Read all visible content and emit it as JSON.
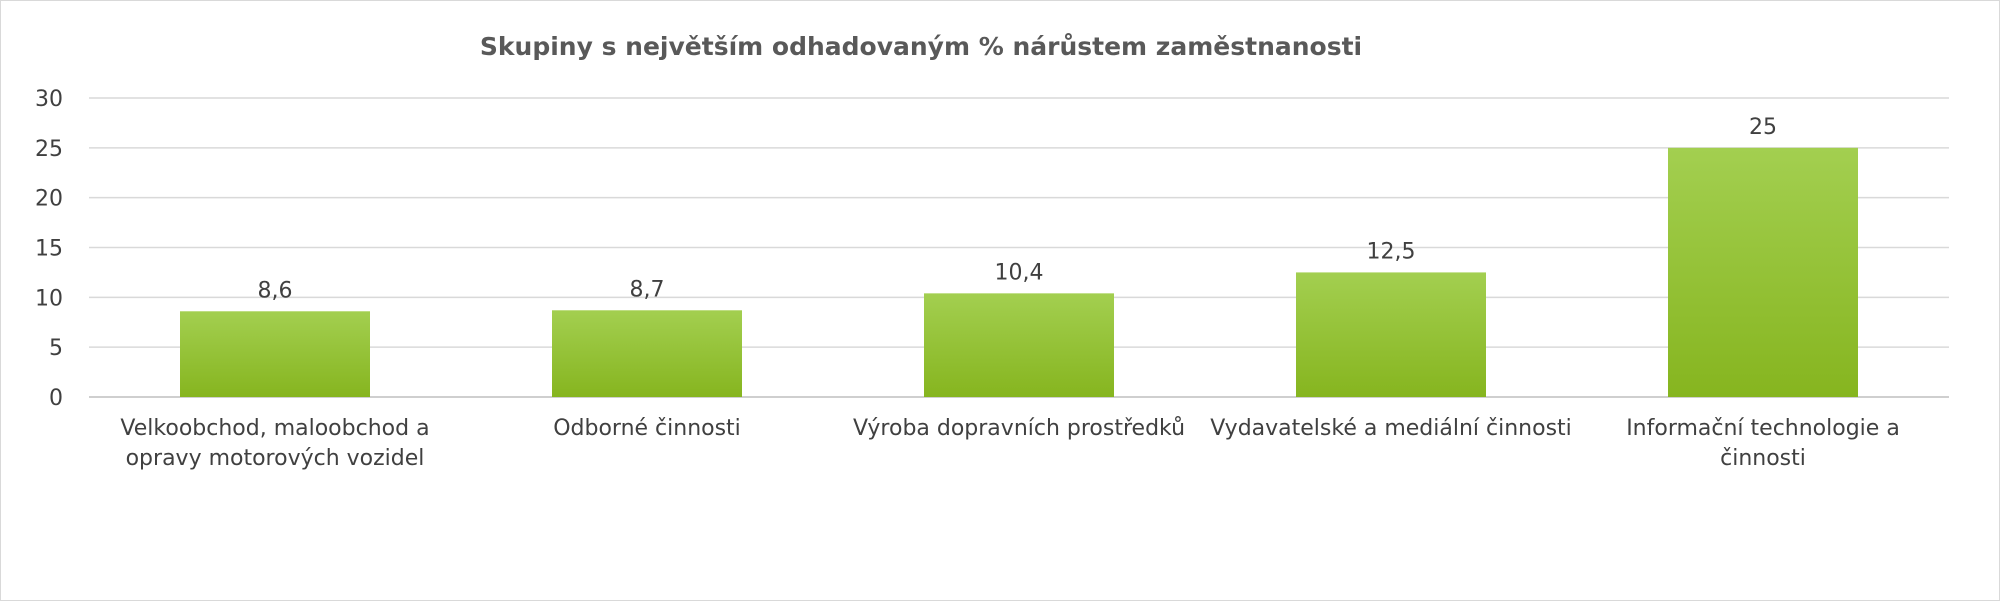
{
  "chart_data": {
    "type": "bar",
    "title": "Skupiny s největším odhadovaným % nárůstem zaměstnanosti",
    "categories": [
      [
        "Velkoobchod, maloobchod a",
        "opravy motorových vozidel"
      ],
      [
        "Odborné činnosti"
      ],
      [
        "Výroba dopravních prostředků"
      ],
      [
        "Vydavatelské a mediální činnosti"
      ],
      [
        "Informační technologie a",
        "činnosti"
      ]
    ],
    "values": [
      8.6,
      8.7,
      10.4,
      12.5,
      25
    ],
    "data_labels": [
      "8,6",
      "8,7",
      "10,4",
      "12,5",
      "25"
    ],
    "yticks": [
      0,
      5,
      10,
      15,
      20,
      25,
      30
    ],
    "ylim": [
      0,
      30
    ],
    "xlabel": "",
    "ylabel": "",
    "grid": true,
    "legend": "none",
    "bar_color_top": "#a3cf50",
    "bar_color_bottom": "#86b51f",
    "gridline_color": "#d9d9d9"
  }
}
